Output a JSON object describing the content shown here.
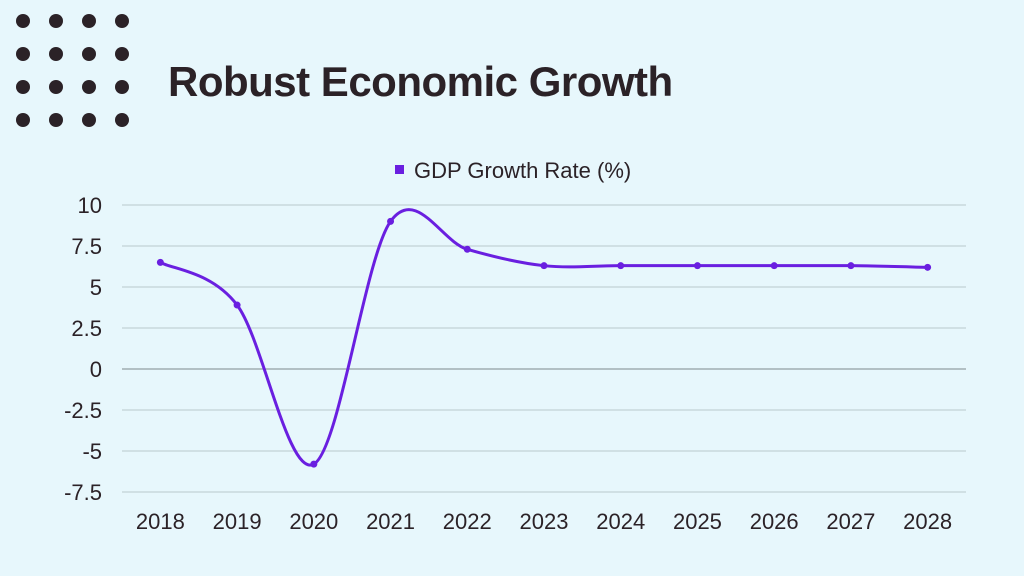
{
  "title": "Robust Economic Growth",
  "colors": {
    "background": "#e7f7fc",
    "text": "#2b2227",
    "series": "#6a1fe0",
    "grid": "#b9c9cc",
    "zero_line": "#7d8a8d"
  },
  "chart_data": {
    "type": "line",
    "title": "",
    "xlabel": "",
    "ylabel": "",
    "x": [
      "2018",
      "2019",
      "2020",
      "2021",
      "2022",
      "2023",
      "2024",
      "2025",
      "2026",
      "2027",
      "2028"
    ],
    "series": [
      {
        "name": "GDP Growth Rate (%)",
        "values": [
          6.5,
          3.9,
          -5.8,
          9.0,
          7.3,
          6.3,
          6.3,
          6.3,
          6.3,
          6.3,
          6.2
        ]
      }
    ],
    "y_ticks": [
      "10",
      "7.5",
      "5",
      "2.5",
      "0",
      "-2.5",
      "-5",
      "-7.5"
    ],
    "ylim": [
      -7.5,
      10
    ],
    "grid": true,
    "legend": "top-center",
    "smooth": true
  }
}
